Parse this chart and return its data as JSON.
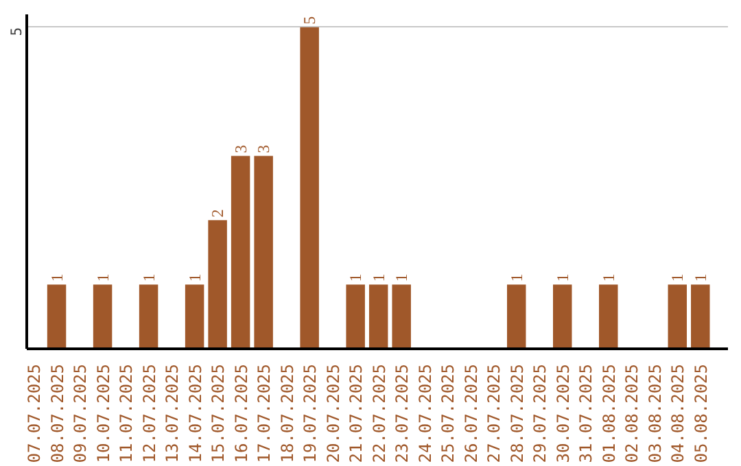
{
  "chart_data": {
    "type": "bar",
    "categories": [
      "07.07.2025",
      "08.07.2025",
      "09.07.2025",
      "10.07.2025",
      "11.07.2025",
      "12.07.2025",
      "13.07.2025",
      "14.07.2025",
      "15.07.2025",
      "16.07.2025",
      "17.07.2025",
      "18.07.2025",
      "19.07.2025",
      "20.07.2025",
      "21.07.2025",
      "22.07.2025",
      "23.07.2025",
      "24.07.2025",
      "25.07.2025",
      "26.07.2025",
      "27.07.2025",
      "28.07.2025",
      "29.07.2025",
      "30.07.2025",
      "31.07.2025",
      "01.08.2025",
      "02.08.2025",
      "03.08.2025",
      "04.08.2025",
      "05.08.2025"
    ],
    "values": [
      0,
      1,
      0,
      1,
      0,
      1,
      0,
      1,
      2,
      3,
      3,
      0,
      5,
      0,
      1,
      1,
      1,
      0,
      0,
      0,
      0,
      1,
      0,
      1,
      0,
      1,
      0,
      0,
      1,
      1
    ],
    "value_labels": [
      null,
      "1",
      null,
      "1",
      null,
      "1",
      null,
      "1",
      "2",
      "3",
      "3",
      null,
      "5",
      null,
      "1",
      "1",
      "1",
      null,
      null,
      null,
      null,
      "1",
      null,
      "1",
      null,
      "1",
      null,
      null,
      "1",
      "1"
    ],
    "color": "#a0582a",
    "ylim": [
      0,
      5.2
    ],
    "yticks": [
      5
    ],
    "grid": "y"
  }
}
